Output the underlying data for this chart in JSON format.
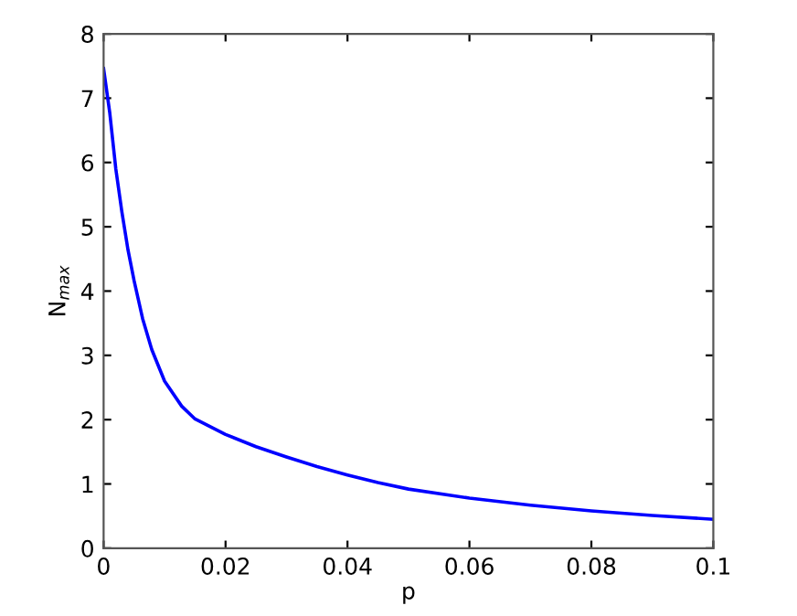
{
  "chart_data": {
    "type": "line",
    "xlabel": "p",
    "ylabel": "N$_{max}$",
    "series": [
      {
        "color": "#0000ff",
        "x": [
          0,
          0.001,
          0.002,
          0.003,
          0.004,
          0.005,
          0.0064,
          0.0079,
          0.01,
          0.0128,
          0.015,
          0.02,
          0.025,
          0.03,
          0.035,
          0.04,
          0.045,
          0.05,
          0.06,
          0.07,
          0.08,
          0.09,
          0.1
        ],
        "values": [
          7.46,
          6.78,
          5.9,
          5.23,
          4.64,
          4.16,
          3.57,
          3.09,
          2.6,
          2.21,
          2.01,
          1.77,
          1.58,
          1.42,
          1.27,
          1.14,
          1.02,
          0.92,
          0.78,
          0.67,
          0.58,
          0.51,
          0.45
        ]
      }
    ],
    "xlim": [
      0,
      0.1
    ],
    "xticks": [
      0,
      0.02,
      0.04,
      0.06,
      0.08,
      0.1
    ],
    "ylim": [
      0,
      8
    ],
    "yticks": [
      0,
      1,
      2,
      3,
      4,
      5,
      6,
      7,
      8
    ],
    "grid": false,
    "legend": false,
    "marker": "none",
    "line_style": "solid"
  }
}
